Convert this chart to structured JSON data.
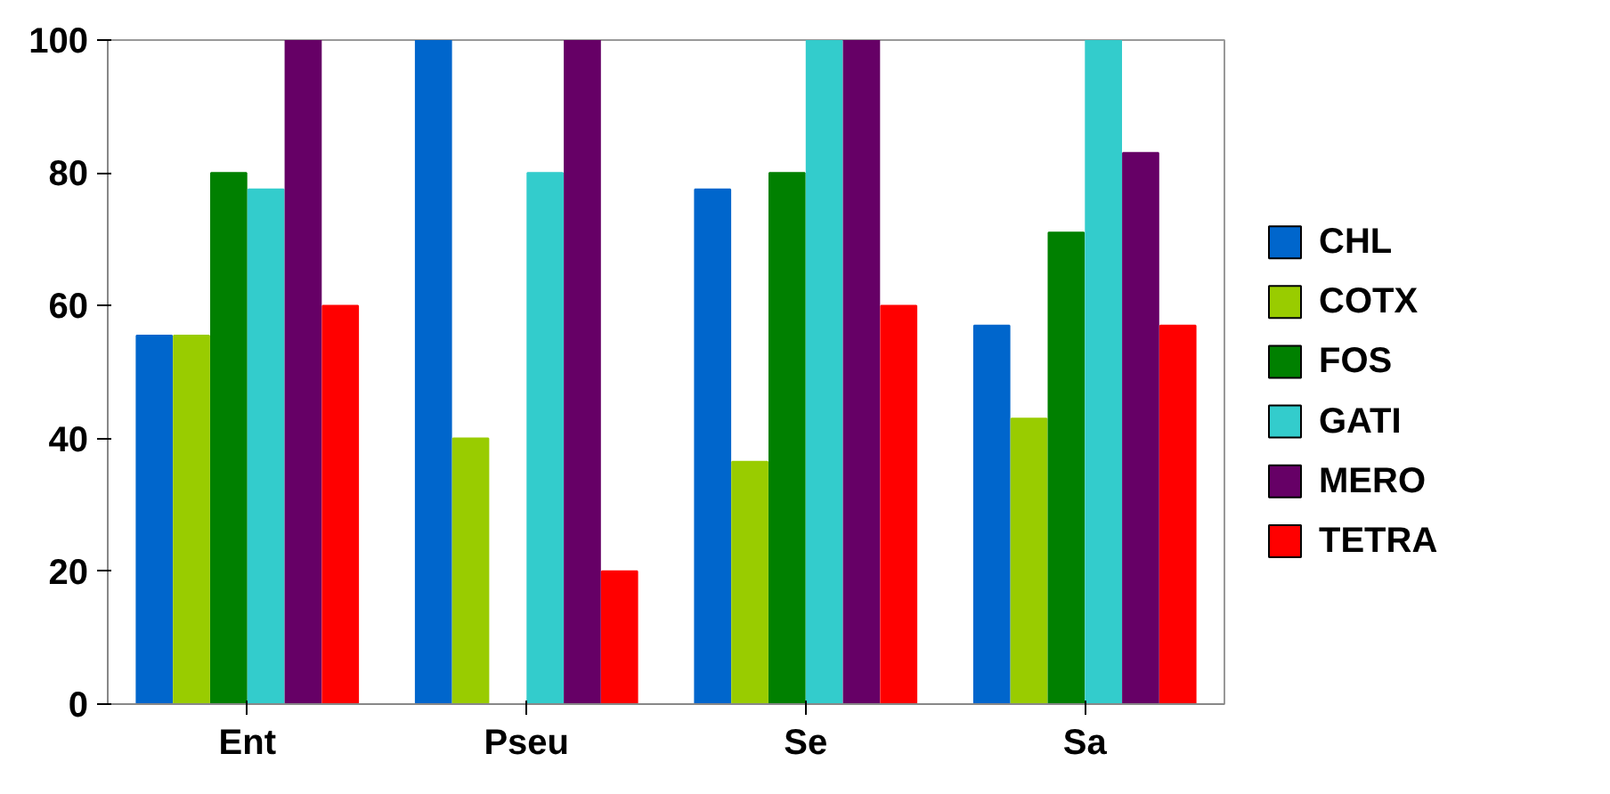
{
  "chart_data": {
    "type": "bar",
    "categories": [
      "Ent",
      "Pseu",
      "Se",
      "Sa"
    ],
    "series": [
      {
        "name": "CHL",
        "color": "#0066cc",
        "values": [
          55.5,
          100,
          77.5,
          57
        ]
      },
      {
        "name": "COTX",
        "color": "#99cc00",
        "values": [
          55.5,
          40,
          36.5,
          43
        ]
      },
      {
        "name": "FOS",
        "color": "#008000",
        "values": [
          80,
          0,
          80,
          71
        ]
      },
      {
        "name": "GATI",
        "color": "#33cccc",
        "values": [
          77.5,
          80,
          100,
          100
        ]
      },
      {
        "name": "MERO",
        "color": "#660066",
        "values": [
          100,
          100,
          100,
          83
        ]
      },
      {
        "name": "TETRA",
        "color": "#ff0000",
        "values": [
          60,
          20,
          60,
          57
        ]
      }
    ],
    "ylim": [
      0,
      100
    ],
    "yticks": [
      0,
      20,
      40,
      60,
      80,
      100
    ],
    "grid": false,
    "legend": "right"
  }
}
